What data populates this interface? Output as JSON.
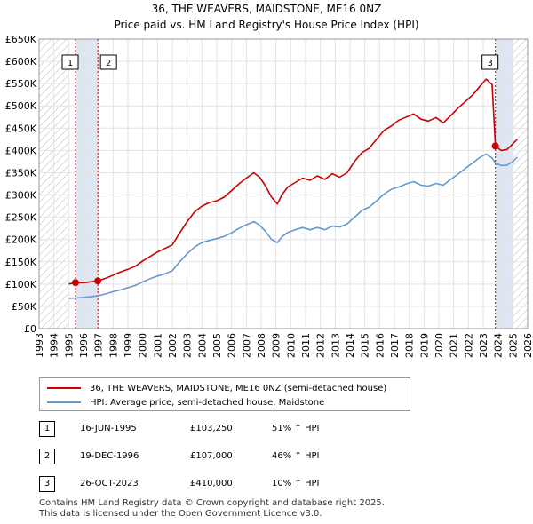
{
  "title": "36, THE WEAVERS, MAIDSTONE, ME16 0NZ",
  "subtitle": "Price paid vs. HM Land Registry's House Price Index (HPI)",
  "colors": {
    "property": "#cc0000",
    "hpi": "#6699cc",
    "band": "#dde6f2",
    "marker": "#cc0000"
  },
  "legend": {
    "property": "36, THE WEAVERS, MAIDSTONE, ME16 0NZ (semi-detached house)",
    "hpi": "HPI: Average price, semi-detached house, Maidstone"
  },
  "transactions": [
    {
      "num": "1",
      "date": "16-JUN-1995",
      "price": "£103,250",
      "hpi": "51% ↑ HPI"
    },
    {
      "num": "2",
      "date": "19-DEC-1996",
      "price": "£107,000",
      "hpi": "46% ↑ HPI"
    },
    {
      "num": "3",
      "date": "26-OCT-2023",
      "price": "£410,000",
      "hpi": "10% ↑ HPI"
    }
  ],
  "footer": {
    "line1": "Contains HM Land Registry data © Crown copyright and database right 2025.",
    "line2": "This data is licensed under the Open Government Licence v3.0."
  },
  "chart_data": {
    "type": "line",
    "title": "36, THE WEAVERS, MAIDSTONE, ME16 0NZ",
    "subtitle": "Price paid vs. HM Land Registry's House Price Index (HPI)",
    "xlim": [
      1993,
      2026
    ],
    "ylim": [
      0,
      650000
    ],
    "x_ticks": [
      1993,
      1994,
      1995,
      1996,
      1997,
      1998,
      1999,
      2000,
      2001,
      2002,
      2003,
      2004,
      2005,
      2006,
      2007,
      2008,
      2009,
      2010,
      2011,
      2012,
      2013,
      2014,
      2015,
      2016,
      2017,
      2018,
      2019,
      2020,
      2021,
      2022,
      2023,
      2024,
      2025,
      2026
    ],
    "y_ticks": [
      {
        "value": 0,
        "label": "£0"
      },
      {
        "value": 50000,
        "label": "£50K"
      },
      {
        "value": 100000,
        "label": "£100K"
      },
      {
        "value": 150000,
        "label": "£150K"
      },
      {
        "value": 200000,
        "label": "£200K"
      },
      {
        "value": 250000,
        "label": "£250K"
      },
      {
        "value": 300000,
        "label": "£300K"
      },
      {
        "value": 350000,
        "label": "£350K"
      },
      {
        "value": 400000,
        "label": "£400K"
      },
      {
        "value": 450000,
        "label": "£450K"
      },
      {
        "value": 500000,
        "label": "£500K"
      },
      {
        "value": 550000,
        "label": "£550K"
      },
      {
        "value": 600000,
        "label": "£600K"
      },
      {
        "value": 650000,
        "label": "£650K"
      }
    ],
    "grid": true,
    "hatched_ranges": [
      [
        1993,
        1995.0
      ],
      [
        2025.0,
        2026
      ]
    ],
    "sale_markers": [
      {
        "label": "1",
        "x": 1995.46,
        "y": 103250
      },
      {
        "label": "2",
        "x": 1996.97,
        "y": 107000
      },
      {
        "label": "3",
        "x": 2023.82,
        "y": 410000
      }
    ],
    "series": [
      {
        "name": "36, THE WEAVERS, MAIDSTONE, ME16 0NZ (semi-detached house)",
        "x": [
          1995.0,
          1995.46,
          1996.0,
          1996.97,
          1997.5,
          1998,
          1998.5,
          1999,
          1999.5,
          2000,
          2000.5,
          2001,
          2001.5,
          2002,
          2002.5,
          2003,
          2003.5,
          2004,
          2004.5,
          2005,
          2005.5,
          2006,
          2006.5,
          2007,
          2007.5,
          2007.9,
          2008.3,
          2008.7,
          2009.1,
          2009.4,
          2009.8,
          2010.3,
          2010.8,
          2011.3,
          2011.8,
          2012.3,
          2012.8,
          2013.3,
          2013.8,
          2014.3,
          2014.8,
          2015.3,
          2015.8,
          2016.3,
          2016.8,
          2017.3,
          2017.8,
          2018.3,
          2018.8,
          2019.3,
          2019.8,
          2020.3,
          2020.8,
          2021.3,
          2021.8,
          2022.3,
          2022.8,
          2023.2,
          2023.6,
          2023.82,
          2024.2,
          2024.6,
          2025.0,
          2025.3
        ],
        "y": [
          100000,
          103250,
          103000,
          107000,
          113000,
          120000,
          127000,
          133000,
          140000,
          152000,
          162000,
          172000,
          180000,
          188000,
          215000,
          240000,
          262000,
          275000,
          283000,
          287000,
          295000,
          310000,
          325000,
          338000,
          350000,
          340000,
          320000,
          295000,
          280000,
          300000,
          318000,
          328000,
          338000,
          333000,
          343000,
          335000,
          348000,
          340000,
          350000,
          375000,
          395000,
          405000,
          425000,
          445000,
          455000,
          468000,
          475000,
          482000,
          470000,
          466000,
          474000,
          462000,
          478000,
          495000,
          510000,
          525000,
          545000,
          560000,
          548000,
          410000,
          400000,
          402000,
          415000,
          425000
        ]
      },
      {
        "name": "HPI: Average price, semi-detached house, Maidstone",
        "x": [
          1995.0,
          1995.46,
          1996.0,
          1996.97,
          1997.5,
          1998,
          1998.5,
          1999,
          1999.5,
          2000,
          2000.5,
          2001,
          2001.5,
          2002,
          2002.5,
          2003,
          2003.5,
          2004,
          2004.5,
          2005,
          2005.5,
          2006,
          2006.5,
          2007,
          2007.5,
          2007.9,
          2008.3,
          2008.7,
          2009.1,
          2009.4,
          2009.8,
          2010.3,
          2010.8,
          2011.3,
          2011.8,
          2012.3,
          2012.8,
          2013.3,
          2013.8,
          2014.3,
          2014.8,
          2015.3,
          2015.8,
          2016.3,
          2016.8,
          2017.3,
          2017.8,
          2018.3,
          2018.8,
          2019.3,
          2019.8,
          2020.3,
          2020.8,
          2021.3,
          2021.8,
          2022.3,
          2022.8,
          2023.2,
          2023.6,
          2023.82,
          2024.2,
          2024.6,
          2025.0,
          2025.3
        ],
        "y": [
          68000,
          68500,
          70000,
          73500,
          78000,
          83000,
          87000,
          92000,
          97000,
          105000,
          112000,
          118000,
          123000,
          130000,
          150000,
          168000,
          183000,
          193000,
          198000,
          202000,
          207000,
          215000,
          225000,
          233000,
          240000,
          232000,
          218000,
          200000,
          193000,
          206000,
          216000,
          222000,
          227000,
          222000,
          227000,
          222000,
          230000,
          228000,
          235000,
          250000,
          265000,
          273000,
          287000,
          302000,
          313000,
          318000,
          325000,
          330000,
          322000,
          320000,
          326000,
          322000,
          335000,
          347000,
          360000,
          372000,
          385000,
          392000,
          383000,
          372000,
          366000,
          367000,
          375000,
          385000
        ]
      }
    ]
  }
}
